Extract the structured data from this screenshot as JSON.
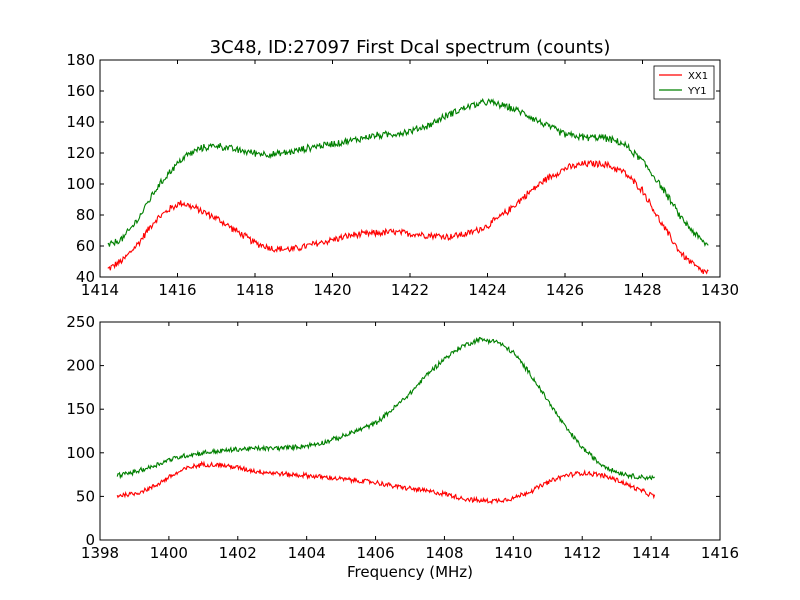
{
  "figure": {
    "title": "3C48, ID:27097 First Dcal spectrum (counts)"
  },
  "chart_data": [
    {
      "type": "line",
      "title": "3C48, ID:27097 First Dcal spectrum (counts)",
      "xlabel": "",
      "ylabel": "",
      "xlim": [
        1414,
        1430
      ],
      "ylim": [
        40,
        180
      ],
      "xticks": [
        "1414",
        "1416",
        "1418",
        "1420",
        "1422",
        "1424",
        "1426",
        "1428",
        "1430"
      ],
      "yticks": [
        "40",
        "60",
        "80",
        "100",
        "120",
        "140",
        "160",
        "180"
      ],
      "grid": false,
      "legend": {
        "placement": "top-right",
        "entries": [
          "XX1",
          "YY1"
        ]
      },
      "series": [
        {
          "name": "XX1",
          "color": "#ff0000",
          "x": [
            1414.2,
            1414.6,
            1415.0,
            1415.4,
            1415.8,
            1416.1,
            1416.5,
            1417.0,
            1417.5,
            1418.0,
            1418.5,
            1419.0,
            1419.5,
            1420.0,
            1420.5,
            1421.0,
            1421.5,
            1422.0,
            1422.5,
            1423.0,
            1423.5,
            1424.0,
            1424.5,
            1425.0,
            1425.5,
            1426.0,
            1426.5,
            1427.0,
            1427.5,
            1428.0,
            1428.5,
            1429.0,
            1429.5,
            1429.7
          ],
          "y": [
            45,
            51,
            62,
            76,
            84,
            88,
            84,
            78,
            70,
            62,
            58,
            58,
            61,
            64,
            67,
            68,
            69,
            68,
            67,
            66,
            68,
            73,
            82,
            93,
            103,
            110,
            113,
            113,
            108,
            96,
            74,
            55,
            44,
            43
          ]
        },
        {
          "name": "YY1",
          "color": "#008000",
          "x": [
            1414.2,
            1414.6,
            1415.0,
            1415.4,
            1415.8,
            1416.2,
            1416.6,
            1417.0,
            1417.5,
            1418.0,
            1418.5,
            1419.0,
            1419.5,
            1420.0,
            1420.5,
            1421.0,
            1421.5,
            1422.0,
            1422.5,
            1423.0,
            1423.5,
            1424.0,
            1424.5,
            1425.0,
            1425.5,
            1426.0,
            1426.5,
            1427.0,
            1427.5,
            1428.0,
            1428.5,
            1429.0,
            1429.5,
            1429.7
          ],
          "y": [
            60,
            65,
            78,
            95,
            108,
            118,
            123,
            125,
            122,
            120,
            119,
            121,
            124,
            126,
            128,
            131,
            132,
            134,
            138,
            145,
            150,
            153,
            150,
            145,
            138,
            132,
            130,
            130,
            126,
            115,
            98,
            78,
            64,
            60
          ]
        }
      ]
    },
    {
      "type": "line",
      "title": "",
      "xlabel": "Frequency (MHz)",
      "ylabel": "",
      "xlim": [
        1398,
        1416
      ],
      "ylim": [
        0,
        250
      ],
      "xticks": [
        "1398",
        "1400",
        "1402",
        "1404",
        "1406",
        "1408",
        "1410",
        "1412",
        "1414",
        "1416"
      ],
      "yticks": [
        "0",
        "50",
        "100",
        "150",
        "200",
        "250"
      ],
      "grid": false,
      "series": [
        {
          "name": "XX1",
          "color": "#ff0000",
          "x": [
            1398.5,
            1399.0,
            1399.5,
            1400.0,
            1400.5,
            1401.0,
            1401.5,
            1402.0,
            1402.5,
            1403.0,
            1403.5,
            1404.0,
            1404.5,
            1405.0,
            1405.5,
            1406.0,
            1406.5,
            1407.0,
            1407.5,
            1408.0,
            1408.5,
            1409.0,
            1409.5,
            1410.0,
            1410.5,
            1411.0,
            1411.5,
            1412.0,
            1412.5,
            1413.0,
            1413.5,
            1414.1
          ],
          "y": [
            51,
            53,
            60,
            72,
            82,
            87,
            86,
            83,
            79,
            77,
            75,
            74,
            72,
            70,
            68,
            66,
            62,
            59,
            56,
            53,
            48,
            45,
            45,
            48,
            56,
            66,
            74,
            77,
            75,
            69,
            60,
            50
          ]
        },
        {
          "name": "YY1",
          "color": "#008000",
          "x": [
            1398.5,
            1399.0,
            1399.5,
            1400.0,
            1400.5,
            1401.0,
            1401.5,
            1402.0,
            1402.5,
            1403.0,
            1403.5,
            1404.0,
            1404.5,
            1405.0,
            1405.5,
            1406.0,
            1406.5,
            1407.0,
            1407.5,
            1408.0,
            1408.5,
            1409.0,
            1409.5,
            1410.0,
            1410.5,
            1411.0,
            1411.5,
            1412.0,
            1412.5,
            1413.0,
            1413.5,
            1414.1
          ],
          "y": [
            74,
            78,
            84,
            92,
            97,
            100,
            102,
            104,
            105,
            105,
            106,
            108,
            112,
            118,
            126,
            134,
            150,
            168,
            190,
            208,
            222,
            230,
            228,
            215,
            190,
            160,
            130,
            106,
            88,
            78,
            73,
            71
          ]
        }
      ]
    }
  ]
}
